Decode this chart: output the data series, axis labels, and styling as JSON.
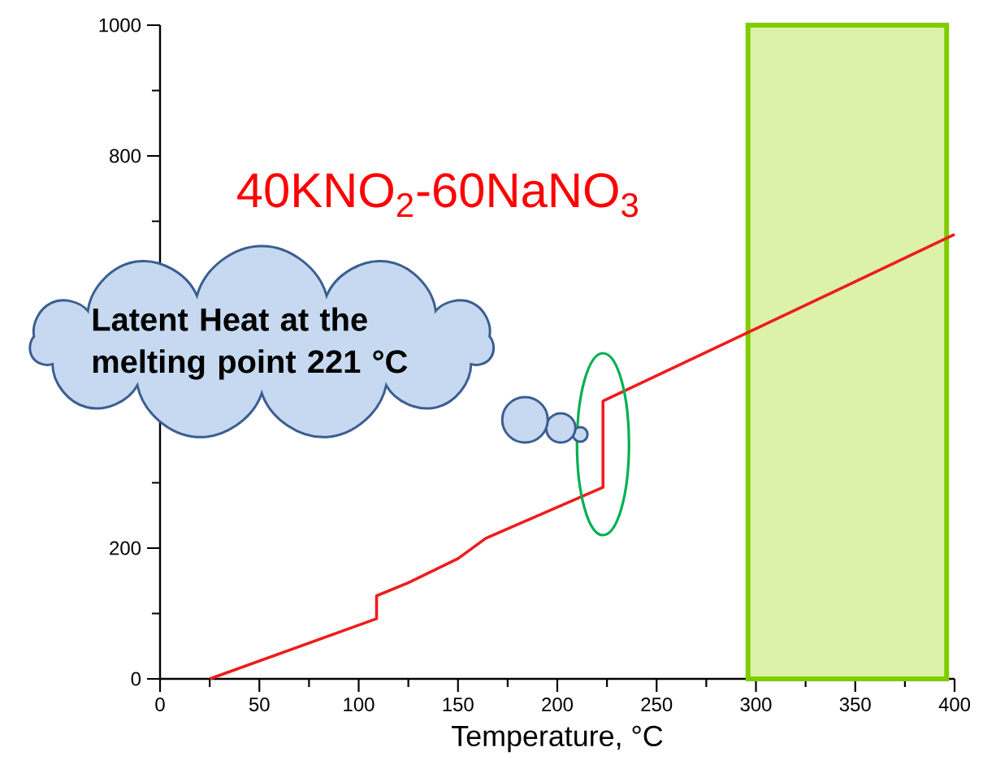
{
  "chart_data": {
    "type": "line",
    "title": "40KNO$_{2}$-60NaNO$_{3}$",
    "xlabel": "Temperature, °C",
    "x": [
      25,
      109,
      109,
      125,
      150,
      164,
      223,
      223,
      285,
      400
    ],
    "series": [
      {
        "color": "#ee1c1c",
        "values": [
          0,
          92,
          127,
          147,
          184,
          215,
          293,
          425,
          514,
          680
        ]
      }
    ],
    "xlim": [
      0,
      400
    ],
    "xticks": [
      0,
      50,
      100,
      150,
      200,
      250,
      300,
      350,
      400
    ],
    "ylim": [
      0,
      1000
    ],
    "yticks": [
      0,
      200,
      800,
      1000
    ],
    "bands": [
      {
        "axis": "x",
        "from": 296,
        "to": 396,
        "color": "#dcf2a8"
      }
    ],
    "annotations": [
      "Latent Heat at the melting point 221 °C"
    ],
    "grid": false,
    "marker": "none",
    "line_style": "solid"
  }
}
